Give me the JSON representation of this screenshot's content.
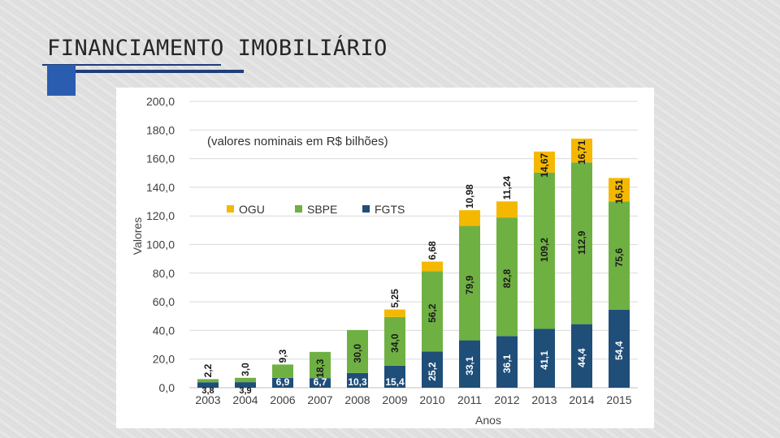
{
  "slide": {
    "title": "FINANCIAMENTO IMOBILIÁRIO"
  },
  "colors": {
    "OGU": "#f5b800",
    "SBPE": "#6fb043",
    "FGTS": "#1f4e79",
    "title_accent": "#2a5db0"
  },
  "chart_data": {
    "type": "bar",
    "stacked": true,
    "subtitle": "(valores nominais em R$ bilhões)",
    "xlabel": "Anos",
    "ylabel": "Valores",
    "ylim": [
      0,
      200
    ],
    "yticks": [
      "0,0",
      "20,0",
      "40,0",
      "60,0",
      "80,0",
      "100,0",
      "120,0",
      "140,0",
      "160,0",
      "180,0",
      "200,0"
    ],
    "grid": true,
    "legend_position": "top-left",
    "categories": [
      "2003",
      "2004",
      "2006",
      "2007",
      "2008",
      "2009",
      "2010",
      "2011",
      "2012",
      "2013",
      "2014",
      "2015"
    ],
    "series": [
      {
        "name": "FGTS",
        "color": "#1f4e79",
        "values": [
          3.8,
          3.9,
          6.9,
          6.7,
          10.3,
          15.4,
          25.2,
          33.1,
          36.1,
          41.1,
          44.4,
          54.4
        ],
        "labels": [
          "3,8",
          "3,9",
          "6,9",
          "6,7",
          "10,3",
          "15,4",
          "25,2",
          "33,1",
          "36,1",
          "41,1",
          "44,4",
          "54,4"
        ]
      },
      {
        "name": "SBPE",
        "color": "#6fb043",
        "values": [
          2.2,
          3.0,
          9.3,
          18.3,
          30.0,
          34.0,
          56.2,
          79.9,
          82.8,
          109.2,
          112.9,
          75.6
        ],
        "labels": [
          "2,2",
          "3,0",
          "9,3",
          "18,3",
          "30,0",
          "34,0",
          "56,2",
          "79,9",
          "82,8",
          "109,2",
          "112,9",
          "75,6"
        ]
      },
      {
        "name": "OGU",
        "color": "#f5b800",
        "values": [
          0,
          0,
          0,
          0,
          0,
          5.25,
          6.68,
          10.98,
          11.24,
          14.67,
          16.71,
          16.51
        ],
        "labels": [
          "",
          "",
          "",
          "",
          "",
          "5,25",
          "6,68",
          "10,98",
          "11,24",
          "14,67",
          "16,71",
          "16,51"
        ]
      }
    ],
    "legend": [
      {
        "name": "OGU",
        "color": "#f5b800"
      },
      {
        "name": "SBPE",
        "color": "#6fb043"
      },
      {
        "name": "FGTS",
        "color": "#1f4e79"
      }
    ]
  }
}
